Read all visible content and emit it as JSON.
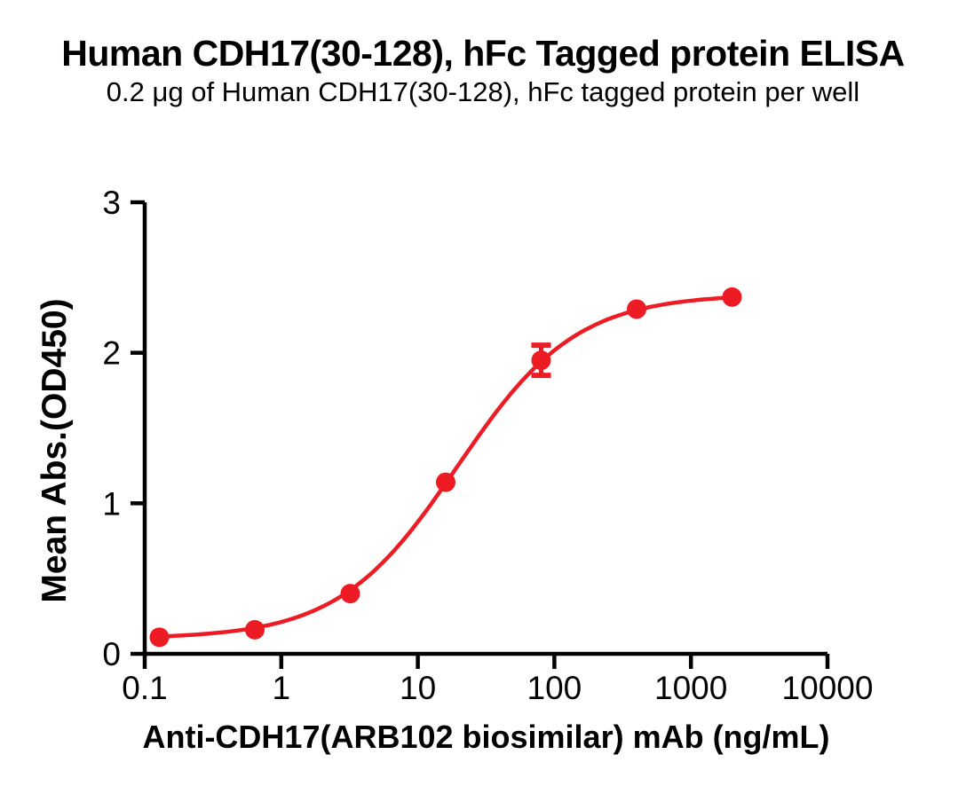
{
  "page": {
    "background": "#FFFFFF"
  },
  "header": {
    "title": "Human CDH17(30-128), hFc Tagged protein ELISA",
    "subtitle": "0.2 μg of Human CDH17(30-128), hFc tagged protein per well"
  },
  "chart_data": {
    "type": "scatter",
    "title": "Human CDH17(30-128), hFc Tagged protein ELISA",
    "subtitle": "0.2 μg of Human CDH17(30-128), hFc tagged protein per well",
    "xlabel": "Anti-CDH17(ARB102 biosimilar) mAb (ng/mL)",
    "ylabel": "Mean Abs.(OD450)",
    "x_scale": "log10",
    "xlim": [
      0.1,
      10000
    ],
    "ylim": [
      0,
      3
    ],
    "x_ticks": [
      0.1,
      1,
      10,
      100,
      1000,
      10000
    ],
    "x_tick_labels": [
      "0.1",
      "1",
      "10",
      "100",
      "1000",
      "10000"
    ],
    "y_ticks": [
      0,
      1,
      2,
      3
    ],
    "y_tick_labels": [
      "0",
      "1",
      "2",
      "3"
    ],
    "grid": false,
    "legend": "none",
    "axis_color": "#000000",
    "series": [
      {
        "name": "Anti-CDH17(ARB102 biosimilar) mAb",
        "color": "#ED1C24",
        "marker": "circle",
        "points": [
          {
            "x": 0.128,
            "y": 0.11,
            "err": 0
          },
          {
            "x": 0.64,
            "y": 0.16,
            "err": 0
          },
          {
            "x": 3.2,
            "y": 0.4,
            "err": 0
          },
          {
            "x": 16,
            "y": 1.14,
            "err": 0
          },
          {
            "x": 80,
            "y": 1.95,
            "err": 0.1
          },
          {
            "x": 400,
            "y": 2.29,
            "err": 0
          },
          {
            "x": 2000,
            "y": 2.37,
            "err": 0
          }
        ],
        "fit": {
          "model": "4PL",
          "bottom": 0.1,
          "top": 2.39,
          "ec50": 19.5,
          "hill": 1.0
        }
      }
    ]
  }
}
